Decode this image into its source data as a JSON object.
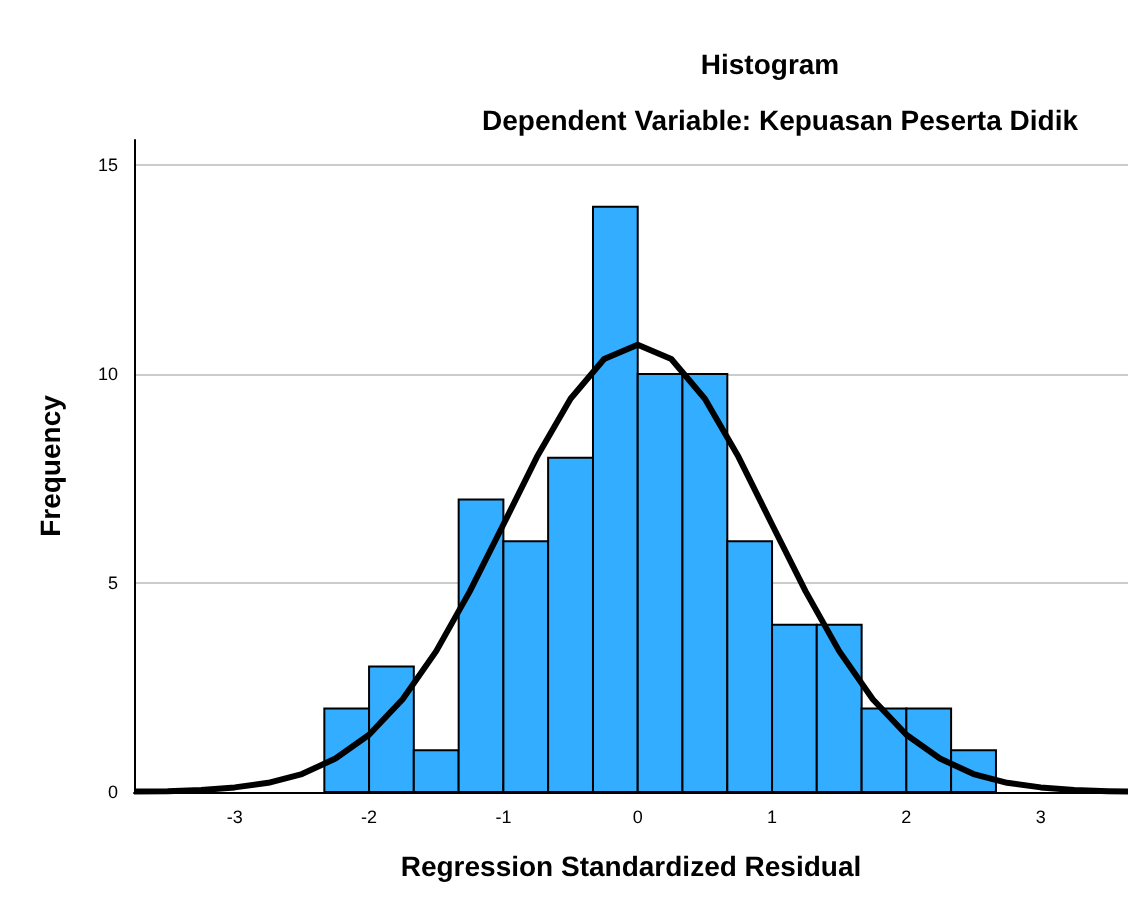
{
  "chart_data": {
    "type": "histogram",
    "title": "Histogram",
    "subtitle": "Dependent Variable: Kepuasan Peserta Didik",
    "xlabel": "Regression Standardized Residual",
    "ylabel": "Frequency",
    "bins": [
      -2.333,
      -2,
      -1.667,
      -1.333,
      -1,
      -0.667,
      -0.333,
      0,
      0.333,
      0.667,
      1,
      1.333,
      1.667,
      2,
      2.333,
      2.667
    ],
    "values": [
      2,
      3,
      1,
      7,
      6,
      8,
      14,
      10,
      10,
      6,
      4,
      4,
      2,
      2,
      1
    ],
    "color": "#33adff",
    "series": [
      {
        "type": "line",
        "color": "#000000",
        "x": [
          -3.75,
          -3.5,
          -3.25,
          -3,
          -2.75,
          -2.5,
          -2.25,
          -2,
          -1.75,
          -1.5,
          -1.25,
          -1,
          -0.75,
          -0.5,
          -0.25,
          0,
          0.25,
          0.5,
          0.75,
          1,
          1.25,
          1.5,
          1.75,
          2,
          2.25,
          2.5,
          2.75,
          3,
          3.25,
          3.5,
          3.65
        ],
        "values": [
          0.01,
          0.02,
          0.05,
          0.11,
          0.22,
          0.43,
          0.8,
          1.37,
          2.22,
          3.37,
          4.8,
          6.4,
          8.02,
          9.41,
          10.36,
          10.7,
          10.36,
          9.41,
          8.02,
          6.4,
          4.8,
          3.37,
          2.22,
          1.37,
          0.8,
          0.43,
          0.22,
          0.11,
          0.05,
          0.02,
          0.01
        ]
      }
    ],
    "xlim": [
      -3.75,
      3.65
    ],
    "xticks": [
      -3,
      -2,
      -1,
      0,
      1,
      2,
      3
    ],
    "ylim": [
      0,
      15.6
    ],
    "yticks": [
      0,
      5,
      10,
      15
    ],
    "grid": "y"
  }
}
